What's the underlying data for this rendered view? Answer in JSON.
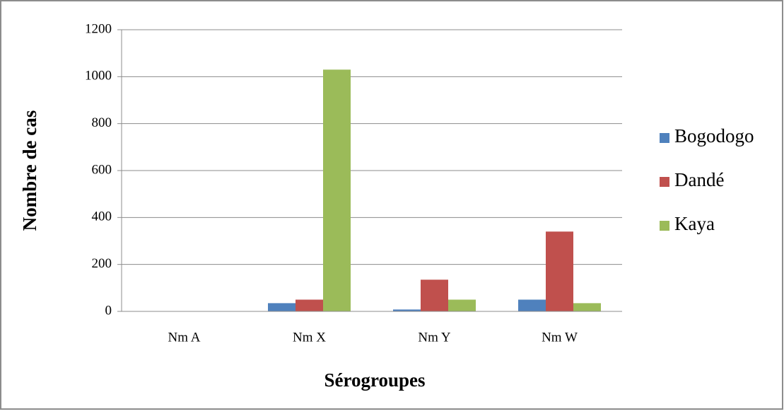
{
  "chart_data": {
    "type": "bar",
    "x_label": "Sérogroupes",
    "y_label": "Nombre de cas",
    "categories": [
      "Nm A",
      "Nm X",
      "Nm Y",
      "Nm W"
    ],
    "series": [
      {
        "name": "Bogodogo",
        "color": "#4f81bd",
        "values": [
          0,
          35,
          8,
          50
        ]
      },
      {
        "name": "Dandé",
        "color": "#c0504d",
        "values": [
          0,
          50,
          135,
          340
        ]
      },
      {
        "name": "Kaya",
        "color": "#9bbb59",
        "values": [
          0,
          1030,
          50,
          35
        ]
      }
    ],
    "ylim": [
      0,
      1200
    ],
    "yticks": [
      0,
      200,
      400,
      600,
      800,
      1000,
      1200
    ],
    "grid": true,
    "legend": "right"
  }
}
